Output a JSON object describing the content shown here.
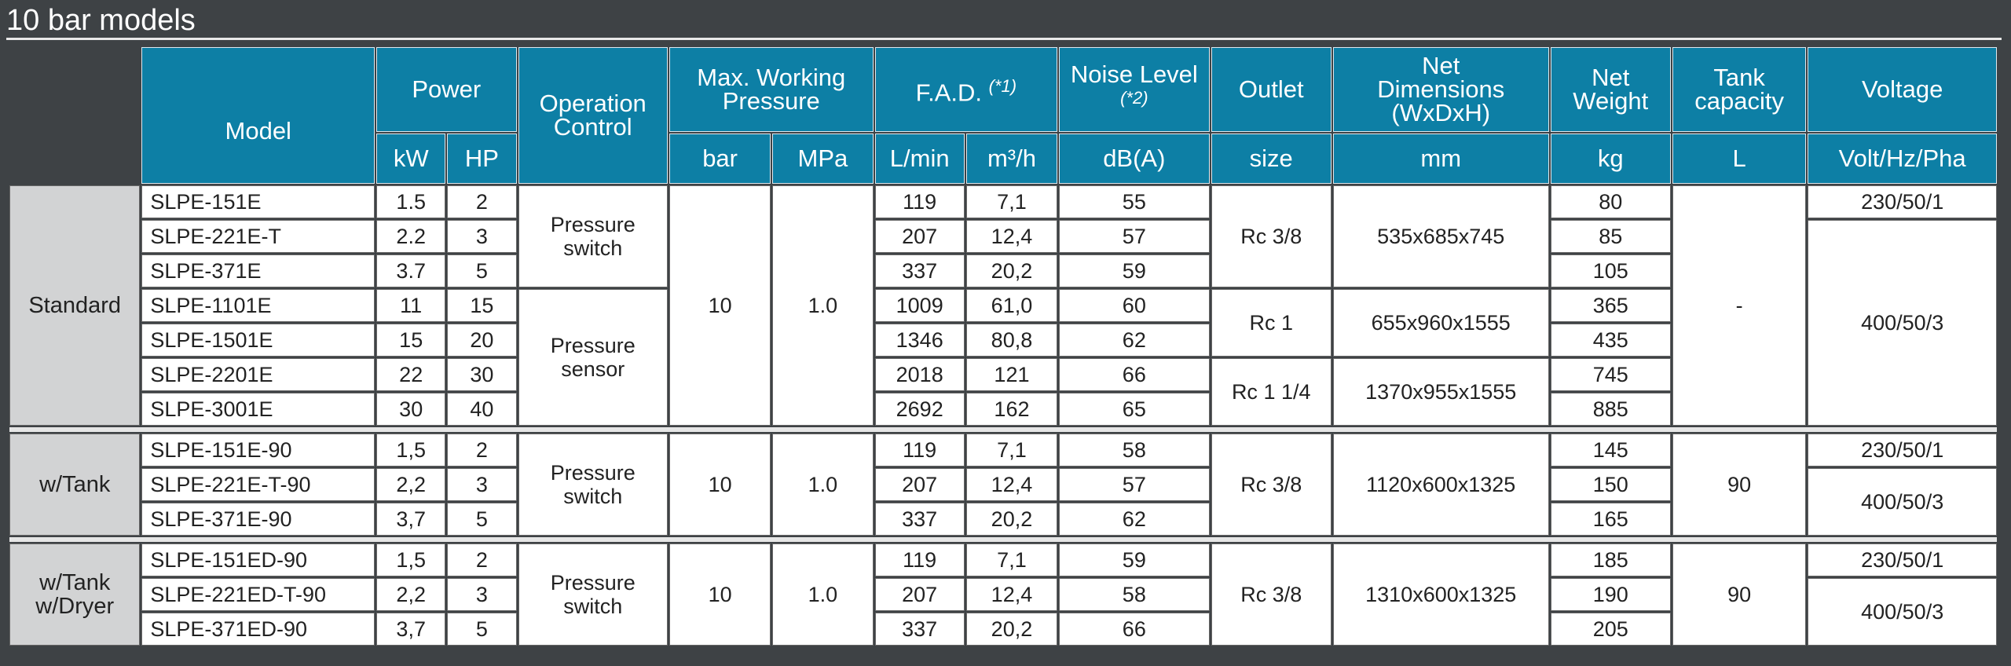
{
  "title": "10 bar models",
  "table": {
    "header": {
      "model": "Model",
      "power": "Power",
      "kw": "kW",
      "hp": "HP",
      "control": "Operation Control",
      "pressure": "Max. Working Pressure",
      "bar": "bar",
      "mpa": "MPa",
      "fad": "F.A.D.",
      "fad_note": "(*1)",
      "lmin": "L/min",
      "m3h": "m³/h",
      "noise": "Noise Level",
      "noise_note": "(*2)",
      "dba": "dB(A)",
      "outlet": "Outlet",
      "size": "size",
      "dimensions": "Net Dimensions (WxDxH)",
      "mm": "mm",
      "weight": "Net Weight",
      "kg": "kg",
      "tank": "Tank capacity",
      "l": "L",
      "voltage": "Voltage",
      "volt": "Volt/Hz/Pha"
    },
    "groups": [
      {
        "name": "Standard",
        "rows": [
          [
            "SLPE-151E",
            "1.5",
            "2",
            "119",
            "7,1",
            "55",
            "80"
          ],
          [
            "SLPE-221E-T",
            "2.2",
            "3",
            "207",
            "12,4",
            "57",
            "85"
          ],
          [
            "SLPE-371E",
            "3.7",
            "5",
            "337",
            "20,2",
            "59",
            "105"
          ],
          [
            "SLPE-1101E",
            "11",
            "15",
            "1009",
            "61,0",
            "60",
            "365"
          ],
          [
            "SLPE-1501E",
            "15",
            "20",
            "1346",
            "80,8",
            "62",
            "435"
          ],
          [
            "SLPE-2201E",
            "22",
            "30",
            "2018",
            "121",
            "66",
            "745"
          ],
          [
            "SLPE-3001E",
            "30",
            "40",
            "2692",
            "162",
            "65",
            "885"
          ]
        ],
        "control": [
          "Pressure switch",
          "Pressure sensor"
        ],
        "bar": "10",
        "mpa": "1.0",
        "outlet": [
          "Rc 3/8",
          "Rc 1",
          "Rc 1 1/4"
        ],
        "dimensions": [
          "535x685x745",
          "655x960x1555",
          "1370x955x1555"
        ],
        "tank": "-",
        "voltage": [
          "230/50/1",
          "400/50/3"
        ]
      },
      {
        "name": "w/Tank",
        "rows": [
          [
            "SLPE-151E-90",
            "1,5",
            "2",
            "119",
            "7,1",
            "58",
            "145"
          ],
          [
            "SLPE-221E-T-90",
            "2,2",
            "3",
            "207",
            "12,4",
            "57",
            "150"
          ],
          [
            "SLPE-371E-90",
            "3,7",
            "5",
            "337",
            "20,2",
            "62",
            "165"
          ]
        ],
        "control": [
          "Pressure switch"
        ],
        "bar": "10",
        "mpa": "1.0",
        "outlet": [
          "Rc 3/8"
        ],
        "dimensions": [
          "1120x600x1325"
        ],
        "tank": "90",
        "voltage": [
          "230/50/1",
          "400/50/3"
        ]
      },
      {
        "name": "w/Tank w/Dryer",
        "rows": [
          [
            "SLPE-151ED-90",
            "1,5",
            "2",
            "119",
            "7,1",
            "59",
            "185"
          ],
          [
            "SLPE-221ED-T-90",
            "2,2",
            "3",
            "207",
            "12,4",
            "58",
            "190"
          ],
          [
            "SLPE-371ED-90",
            "3,7",
            "5",
            "337",
            "20,2",
            "66",
            "205"
          ]
        ],
        "control": [
          "Pressure switch"
        ],
        "bar": "10",
        "mpa": "1.0",
        "outlet": [
          "Rc 3/8"
        ],
        "dimensions": [
          "1310x600x1325"
        ],
        "tank": "90",
        "voltage": [
          "230/50/1",
          "400/50/3"
        ]
      }
    ]
  }
}
